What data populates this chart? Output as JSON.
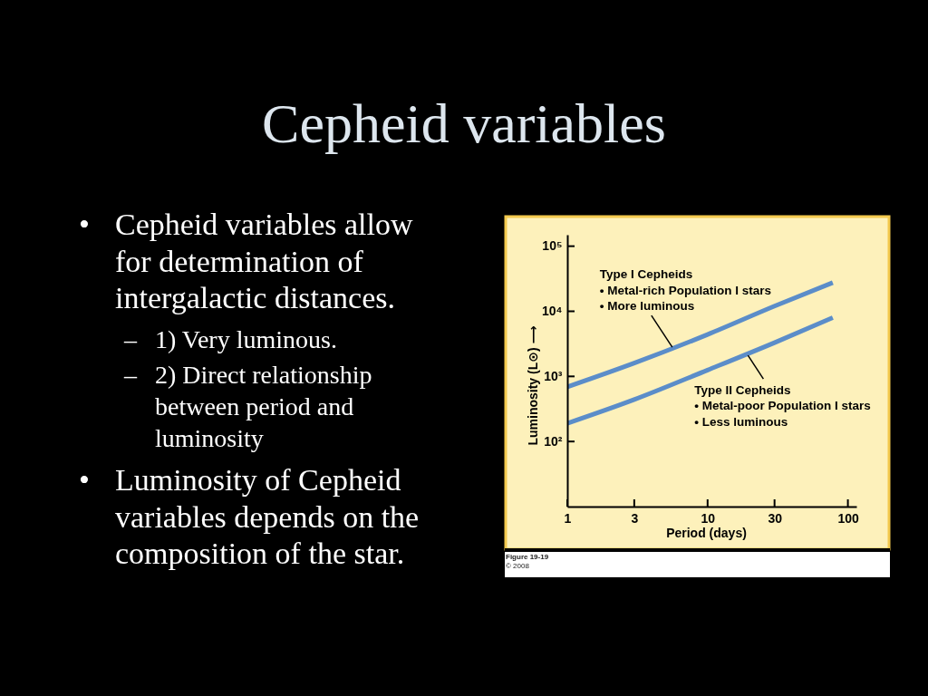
{
  "chart_data": {
    "type": "line",
    "title": "Cepheid variables",
    "xlabel": "Period (days)",
    "ylabel": "Luminosity (L⊙) ⟶",
    "log": "xy",
    "xlim": [
      1,
      115
    ],
    "ylim": [
      10,
      150000
    ],
    "xticks": [
      1,
      3,
      10,
      30,
      100
    ],
    "yticks": [
      {
        "value": 100,
        "label": "10²"
      },
      {
        "value": 1000,
        "label": "10³"
      },
      {
        "value": 10000,
        "label": "10⁴"
      },
      {
        "value": 100000,
        "label": "10⁵"
      }
    ],
    "line_style": "solid",
    "series": [
      {
        "color": "#5b8dc9",
        "x": [
          1,
          3,
          10,
          30,
          78
        ],
        "values": [
          690,
          1600,
          4400,
          12000,
          27500
        ]
      },
      {
        "color": "#5b8dc9",
        "x": [
          1,
          3,
          10,
          30,
          78
        ],
        "values": [
          190,
          440,
          1250,
          3300,
          8000
        ]
      }
    ],
    "annotations": [
      "• Cepheid variables allow\nfor determination of\nintergalactic distances.",
      "– 1) Very luminous.",
      "– 2) Direct relationship\nbetween period and\nluminosity",
      "• Luminosity of Cepheid\nvariables depends on the\ncomposition of the star.",
      {
        "text": "Type I Cepheids\n• Metal-rich Population I stars\n• More luminous",
        "x": 5.6,
        "y": 2800
      },
      {
        "text": "Type II Cepheids\n• Metal-poor Population I stars\n• Less luminous",
        "x": 19.4,
        "y": 2100
      },
      "Figure 19-19\n© 2008"
    ]
  }
}
